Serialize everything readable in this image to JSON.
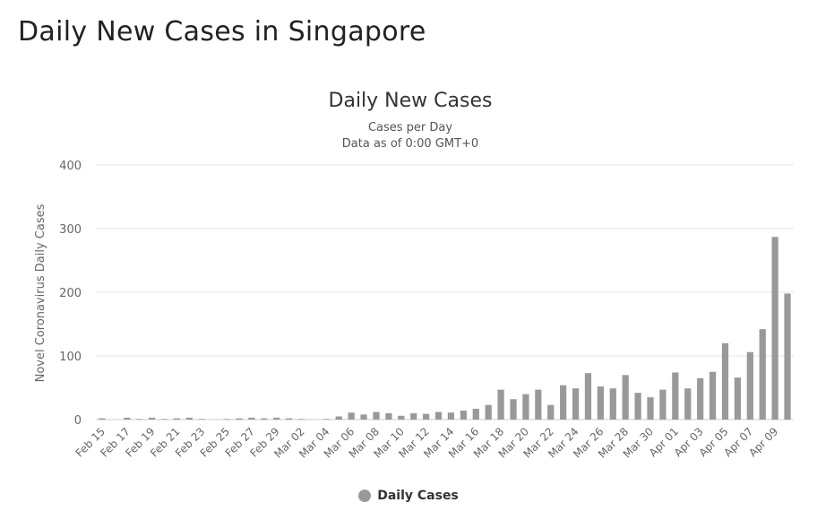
{
  "page": {
    "title": "Daily New Cases in Singapore"
  },
  "colors": {
    "bar": "#999999",
    "grid": "#e6e6e6",
    "axis_text": "#666666"
  },
  "chart_data": {
    "type": "bar",
    "title": "Daily New Cases",
    "subtitle_lines": [
      "Cases per Day",
      "Data as of 0:00 GMT+0"
    ],
    "ylabel": "Novel Coronavirus Daily Cases",
    "xlabel": "",
    "ylim": [
      0,
      400
    ],
    "yticks": [
      0,
      100,
      200,
      300,
      400
    ],
    "grid": true,
    "legend_position": "bottom-center",
    "categories": [
      "Feb 15",
      "Feb 16",
      "Feb 17",
      "Feb 18",
      "Feb 19",
      "Feb 20",
      "Feb 21",
      "Feb 22",
      "Feb 23",
      "Feb 24",
      "Feb 25",
      "Feb 26",
      "Feb 27",
      "Feb 28",
      "Feb 29",
      "Mar 01",
      "Mar 02",
      "Mar 03",
      "Mar 04",
      "Mar 05",
      "Mar 06",
      "Mar 07",
      "Mar 08",
      "Mar 09",
      "Mar 10",
      "Mar 11",
      "Mar 12",
      "Mar 13",
      "Mar 14",
      "Mar 15",
      "Mar 16",
      "Mar 17",
      "Mar 18",
      "Mar 19",
      "Mar 20",
      "Mar 21",
      "Mar 22",
      "Mar 23",
      "Mar 24",
      "Mar 25",
      "Mar 26",
      "Mar 27",
      "Mar 28",
      "Mar 29",
      "Mar 30",
      "Mar 31",
      "Apr 01",
      "Apr 02",
      "Apr 03",
      "Apr 04",
      "Apr 05",
      "Apr 06",
      "Apr 07",
      "Apr 08",
      "Apr 09",
      "Apr 10"
    ],
    "tick_labels": [
      "Feb 15",
      "Feb 17",
      "Feb 19",
      "Feb 21",
      "Feb 23",
      "Feb 25",
      "Feb 27",
      "Feb 29",
      "Mar 02",
      "Mar 04",
      "Mar 06",
      "Mar 08",
      "Mar 10",
      "Mar 12",
      "Mar 14",
      "Mar 16",
      "Mar 18",
      "Mar 20",
      "Mar 22",
      "Mar 24",
      "Mar 26",
      "Mar 28",
      "Mar 30",
      "Apr 01",
      "Apr 03",
      "Apr 05",
      "Apr 07",
      "Apr 09"
    ],
    "series": [
      {
        "name": "Daily Cases",
        "color": "#999999",
        "values": [
          2,
          0,
          3,
          1,
          3,
          1,
          2,
          3,
          1,
          0,
          1,
          2,
          3,
          2,
          3,
          2,
          1,
          0,
          1,
          5,
          11,
          8,
          12,
          10,
          6,
          10,
          9,
          12,
          11,
          14,
          17,
          23,
          47,
          32,
          40,
          47,
          23,
          54,
          49,
          73,
          52,
          49,
          70,
          42,
          35,
          47,
          74,
          49,
          65,
          75,
          120,
          66,
          106,
          142,
          287,
          198
        ]
      }
    ]
  }
}
